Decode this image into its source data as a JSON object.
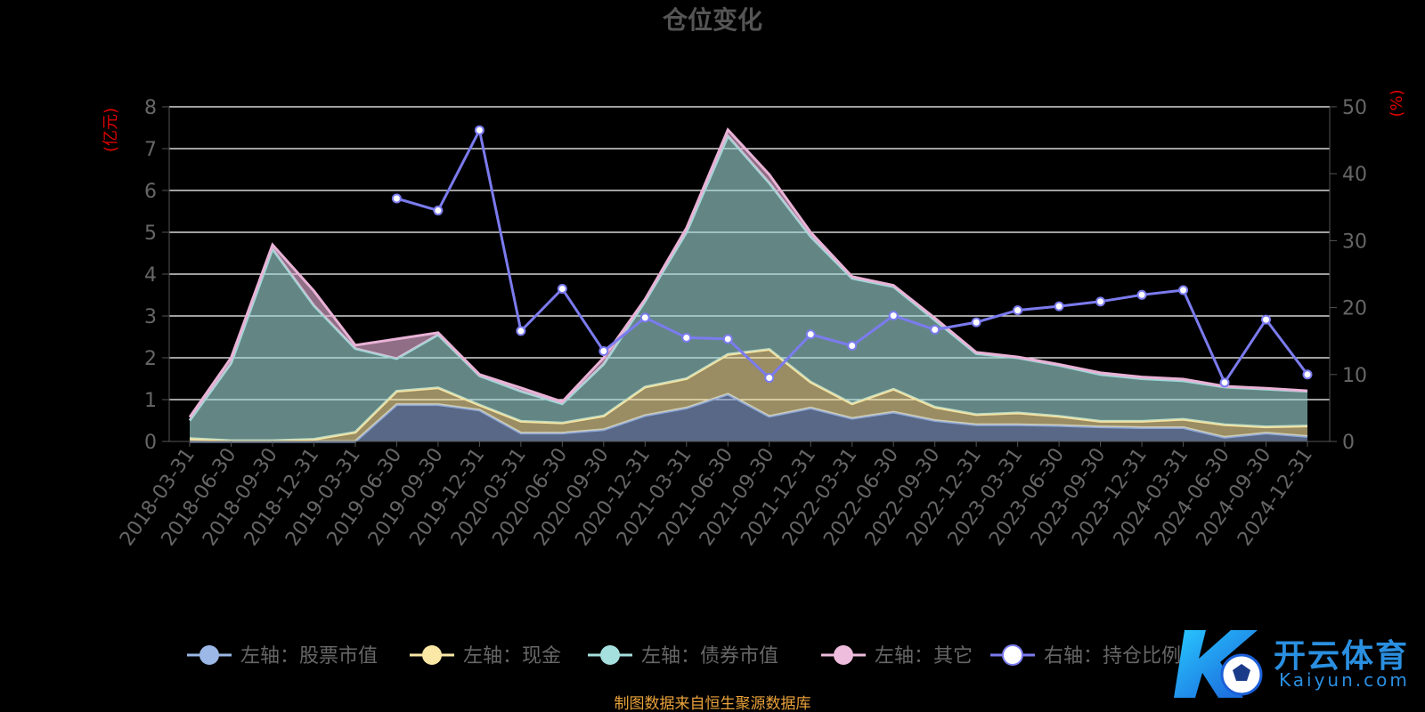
{
  "chart_data": {
    "type": "area",
    "title": "仓位变化",
    "left_axis": {
      "label": "(亿元)",
      "range": [
        0,
        8
      ],
      "ticks": [
        0,
        1,
        2,
        3,
        4,
        5,
        6,
        7,
        8
      ]
    },
    "right_axis": {
      "label": "(%)",
      "range": [
        0,
        50
      ],
      "ticks": [
        0,
        10,
        20,
        30,
        40,
        50
      ]
    },
    "x": [
      "2018-03-31",
      "2018-06-30",
      "2018-09-30",
      "2018-12-31",
      "2019-03-31",
      "2019-06-30",
      "2019-09-30",
      "2019-12-31",
      "2020-03-31",
      "2020-06-30",
      "2020-09-30",
      "2020-12-31",
      "2021-03-31",
      "2021-06-30",
      "2021-09-30",
      "2021-12-31",
      "2022-03-31",
      "2022-06-30",
      "2022-09-30",
      "2022-12-31",
      "2023-03-31",
      "2023-06-30",
      "2023-09-30",
      "2023-12-31",
      "2024-03-31",
      "2024-06-30",
      "2024-09-30",
      "2024-12-31"
    ],
    "series": [
      {
        "name": "左轴：股票市值",
        "axis": "left",
        "kind": "stack-area",
        "color": "#8ea8d8",
        "values": [
          0,
          0,
          0,
          0,
          0,
          0.88,
          0.88,
          0.75,
          0.2,
          0.2,
          0.28,
          0.62,
          0.8,
          1.13,
          0.6,
          0.8,
          0.55,
          0.7,
          0.5,
          0.4,
          0.4,
          0.38,
          0.35,
          0.33,
          0.33,
          0.1,
          0.2,
          0.12
        ]
      },
      {
        "name": "左轴：现金",
        "axis": "left",
        "kind": "stack-area",
        "color": "#f9e4a0",
        "values": [
          0.07,
          0.02,
          0.02,
          0.05,
          0.22,
          0.32,
          0.4,
          0.12,
          0.28,
          0.24,
          0.33,
          0.68,
          0.7,
          0.95,
          1.6,
          0.62,
          0.35,
          0.55,
          0.32,
          0.24,
          0.28,
          0.22,
          0.13,
          0.15,
          0.2,
          0.3,
          0.15,
          0.25
        ]
      },
      {
        "name": "左轴：债券市值",
        "axis": "left",
        "kind": "stack-area",
        "color": "#9fd8d6",
        "values": [
          0.43,
          1.85,
          4.58,
          3.2,
          2.0,
          0.78,
          1.27,
          0.7,
          0.72,
          0.46,
          1.24,
          2.05,
          3.5,
          5.22,
          3.98,
          3.48,
          3.0,
          2.45,
          2.08,
          1.46,
          1.32,
          1.22,
          1.12,
          1.02,
          0.92,
          0.9,
          0.9,
          0.83
        ]
      },
      {
        "name": "左轴：其它",
        "axis": "left",
        "kind": "stack-area",
        "color": "#e9b2d6",
        "values": [
          0.08,
          0.13,
          0.1,
          0.35,
          0.08,
          0.47,
          0.05,
          0.03,
          0.08,
          0.05,
          0.15,
          0.05,
          0.1,
          0.15,
          0.2,
          0.1,
          0.04,
          0.03,
          0.05,
          0.03,
          0.02,
          0.02,
          0.04,
          0.04,
          0.04,
          0.02,
          0.02,
          0.01
        ]
      },
      {
        "name": "右轴：持仓比例",
        "axis": "right",
        "kind": "line",
        "color": "#7b7bef",
        "values": [
          null,
          null,
          null,
          null,
          null,
          36.3,
          34.5,
          46.5,
          16.5,
          22.8,
          13.5,
          18.5,
          15.5,
          15.3,
          9.5,
          16.0,
          14.3,
          18.8,
          16.7,
          17.8,
          19.6,
          20.2,
          20.9,
          21.9,
          22.6,
          8.8,
          18.2,
          10.0
        ]
      }
    ],
    "grid": true,
    "legend_position": "bottom"
  },
  "legend": [
    {
      "label": "左轴：股票市值",
      "color": "#9bb8e6"
    },
    {
      "label": "左轴：现金",
      "color": "#fbe8a6"
    },
    {
      "label": "左轴：债券市值",
      "color": "#a6e0de"
    },
    {
      "label": "左轴：其它",
      "color": "#eebcdc"
    },
    {
      "label": "右轴：持仓比例",
      "color": "#ffffff"
    }
  ],
  "footer_note": "制图数据来自恒生聚源数据库",
  "watermark": {
    "name": "开云体育",
    "sub": "Kaiyun.com"
  },
  "colors": {
    "grid": "#ffffff",
    "axis": "#555555",
    "axis_text": "#666666",
    "axis_title": "#e00000",
    "title": "#555555",
    "footer": "#e8a13a"
  }
}
